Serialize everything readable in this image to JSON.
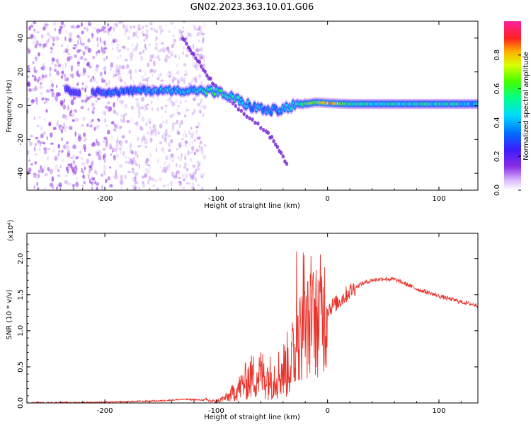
{
  "figure_title": "GN02.2023.363.10.01.G06",
  "colors": {
    "snr_line": "#e8322a",
    "scatter_noise": "#8a2be2",
    "track_core": "#00d0ff",
    "track_edge": "#3020e0"
  },
  "colorbar": {
    "label": "Normalized spectral amplitude",
    "ticks": [
      "0.0",
      "0.2",
      "0.4",
      "0.6",
      "0.8"
    ],
    "tick_values": [
      0.0,
      0.2,
      0.4,
      0.6,
      0.8
    ],
    "range": [
      0.0,
      1.0
    ],
    "colormap": "rainbow (violet-blue-cyan-green-yellow-red-magenta)"
  },
  "chart_data": [
    {
      "type": "heatmap",
      "xlabel": "Height of straight line (km)",
      "ylabel": "Frequency (Hz)",
      "xlim": [
        -270,
        135
      ],
      "ylim": [
        -50,
        50
      ],
      "xticks": [
        -200,
        -100,
        0,
        100
      ],
      "xtick_labels": [
        "-200",
        "-100",
        "0",
        "100"
      ],
      "yticks": [
        -40,
        -20,
        0,
        20,
        40
      ],
      "ytick_labels": [
        "-40",
        "-20",
        "0",
        "20",
        "40"
      ],
      "main_track": [
        {
          "x": -235,
          "y": 9,
          "amp": 0.25
        },
        {
          "x": -210,
          "y": 8,
          "amp": 0.3
        },
        {
          "x": -190,
          "y": 8,
          "amp": 0.35
        },
        {
          "x": -170,
          "y": 9,
          "amp": 0.4
        },
        {
          "x": -150,
          "y": 9,
          "amp": 0.45
        },
        {
          "x": -130,
          "y": 9,
          "amp": 0.5
        },
        {
          "x": -112,
          "y": 9,
          "amp": 0.55
        },
        {
          "x": -100,
          "y": 8,
          "amp": 0.6
        },
        {
          "x": -90,
          "y": 6,
          "amp": 0.55
        },
        {
          "x": -80,
          "y": 3,
          "amp": 0.5
        },
        {
          "x": -70,
          "y": 0,
          "amp": 0.45
        },
        {
          "x": -60,
          "y": -2,
          "amp": 0.45
        },
        {
          "x": -50,
          "y": -3,
          "amp": 0.4
        },
        {
          "x": -40,
          "y": -2,
          "amp": 0.45
        },
        {
          "x": -30,
          "y": 0,
          "amp": 0.55
        },
        {
          "x": -20,
          "y": 1,
          "amp": 0.65
        },
        {
          "x": -10,
          "y": 2,
          "amp": 0.75
        },
        {
          "x": 0,
          "y": 1.5,
          "amp": 0.85
        },
        {
          "x": 20,
          "y": 1,
          "amp": 0.6
        },
        {
          "x": 50,
          "y": 1,
          "amp": 0.55
        },
        {
          "x": 80,
          "y": 1,
          "amp": 0.55
        },
        {
          "x": 110,
          "y": 1,
          "amp": 0.55
        },
        {
          "x": 135,
          "y": 1,
          "amp": 0.5
        }
      ],
      "secondary_track": [
        {
          "x": -130,
          "y": 40
        },
        {
          "x": -120,
          "y": 30
        },
        {
          "x": -110,
          "y": 20
        },
        {
          "x": -100,
          "y": 11
        },
        {
          "x": -85,
          "y": 2
        },
        {
          "x": -70,
          "y": -8
        },
        {
          "x": -55,
          "y": -15
        },
        {
          "x": -45,
          "y": -24
        },
        {
          "x": -35,
          "y": -36
        }
      ]
    },
    {
      "type": "line",
      "xlabel": "Height of straight line (km)",
      "ylabel": "SNR (10 * v/v)",
      "y_multiplier": "(x10⁴)",
      "xlim": [
        -270,
        135
      ],
      "ylim": [
        0,
        2.35
      ],
      "xticks": [
        -200,
        -100,
        0,
        100
      ],
      "xtick_labels": [
        "-200",
        "-100",
        "0",
        "100"
      ],
      "yticks": [
        0.0,
        0.5,
        1.0,
        1.5,
        2.0
      ],
      "ytick_labels": [
        "0.0",
        "0.5",
        "1.0",
        "1.5",
        "2.0"
      ],
      "series": [
        {
          "x": [
            -270,
            -200,
            -150,
            -130,
            -110,
            -100,
            -90,
            -80,
            -70,
            -60,
            -50,
            -40,
            -30,
            -25,
            -20,
            -15,
            -10,
            -5,
            0,
            10,
            20,
            30,
            40,
            50,
            60,
            70,
            80,
            90,
            100,
            110,
            120,
            135
          ],
          "y": [
            0.0,
            0.01,
            0.03,
            0.05,
            0.04,
            0.02,
            0.08,
            0.2,
            0.35,
            0.4,
            0.35,
            0.45,
            0.65,
            0.9,
            1.0,
            1.1,
            1.15,
            1.25,
            1.3,
            1.4,
            1.55,
            1.65,
            1.7,
            1.72,
            1.71,
            1.65,
            1.58,
            1.53,
            1.48,
            1.44,
            1.4,
            1.35
          ]
        }
      ]
    }
  ]
}
